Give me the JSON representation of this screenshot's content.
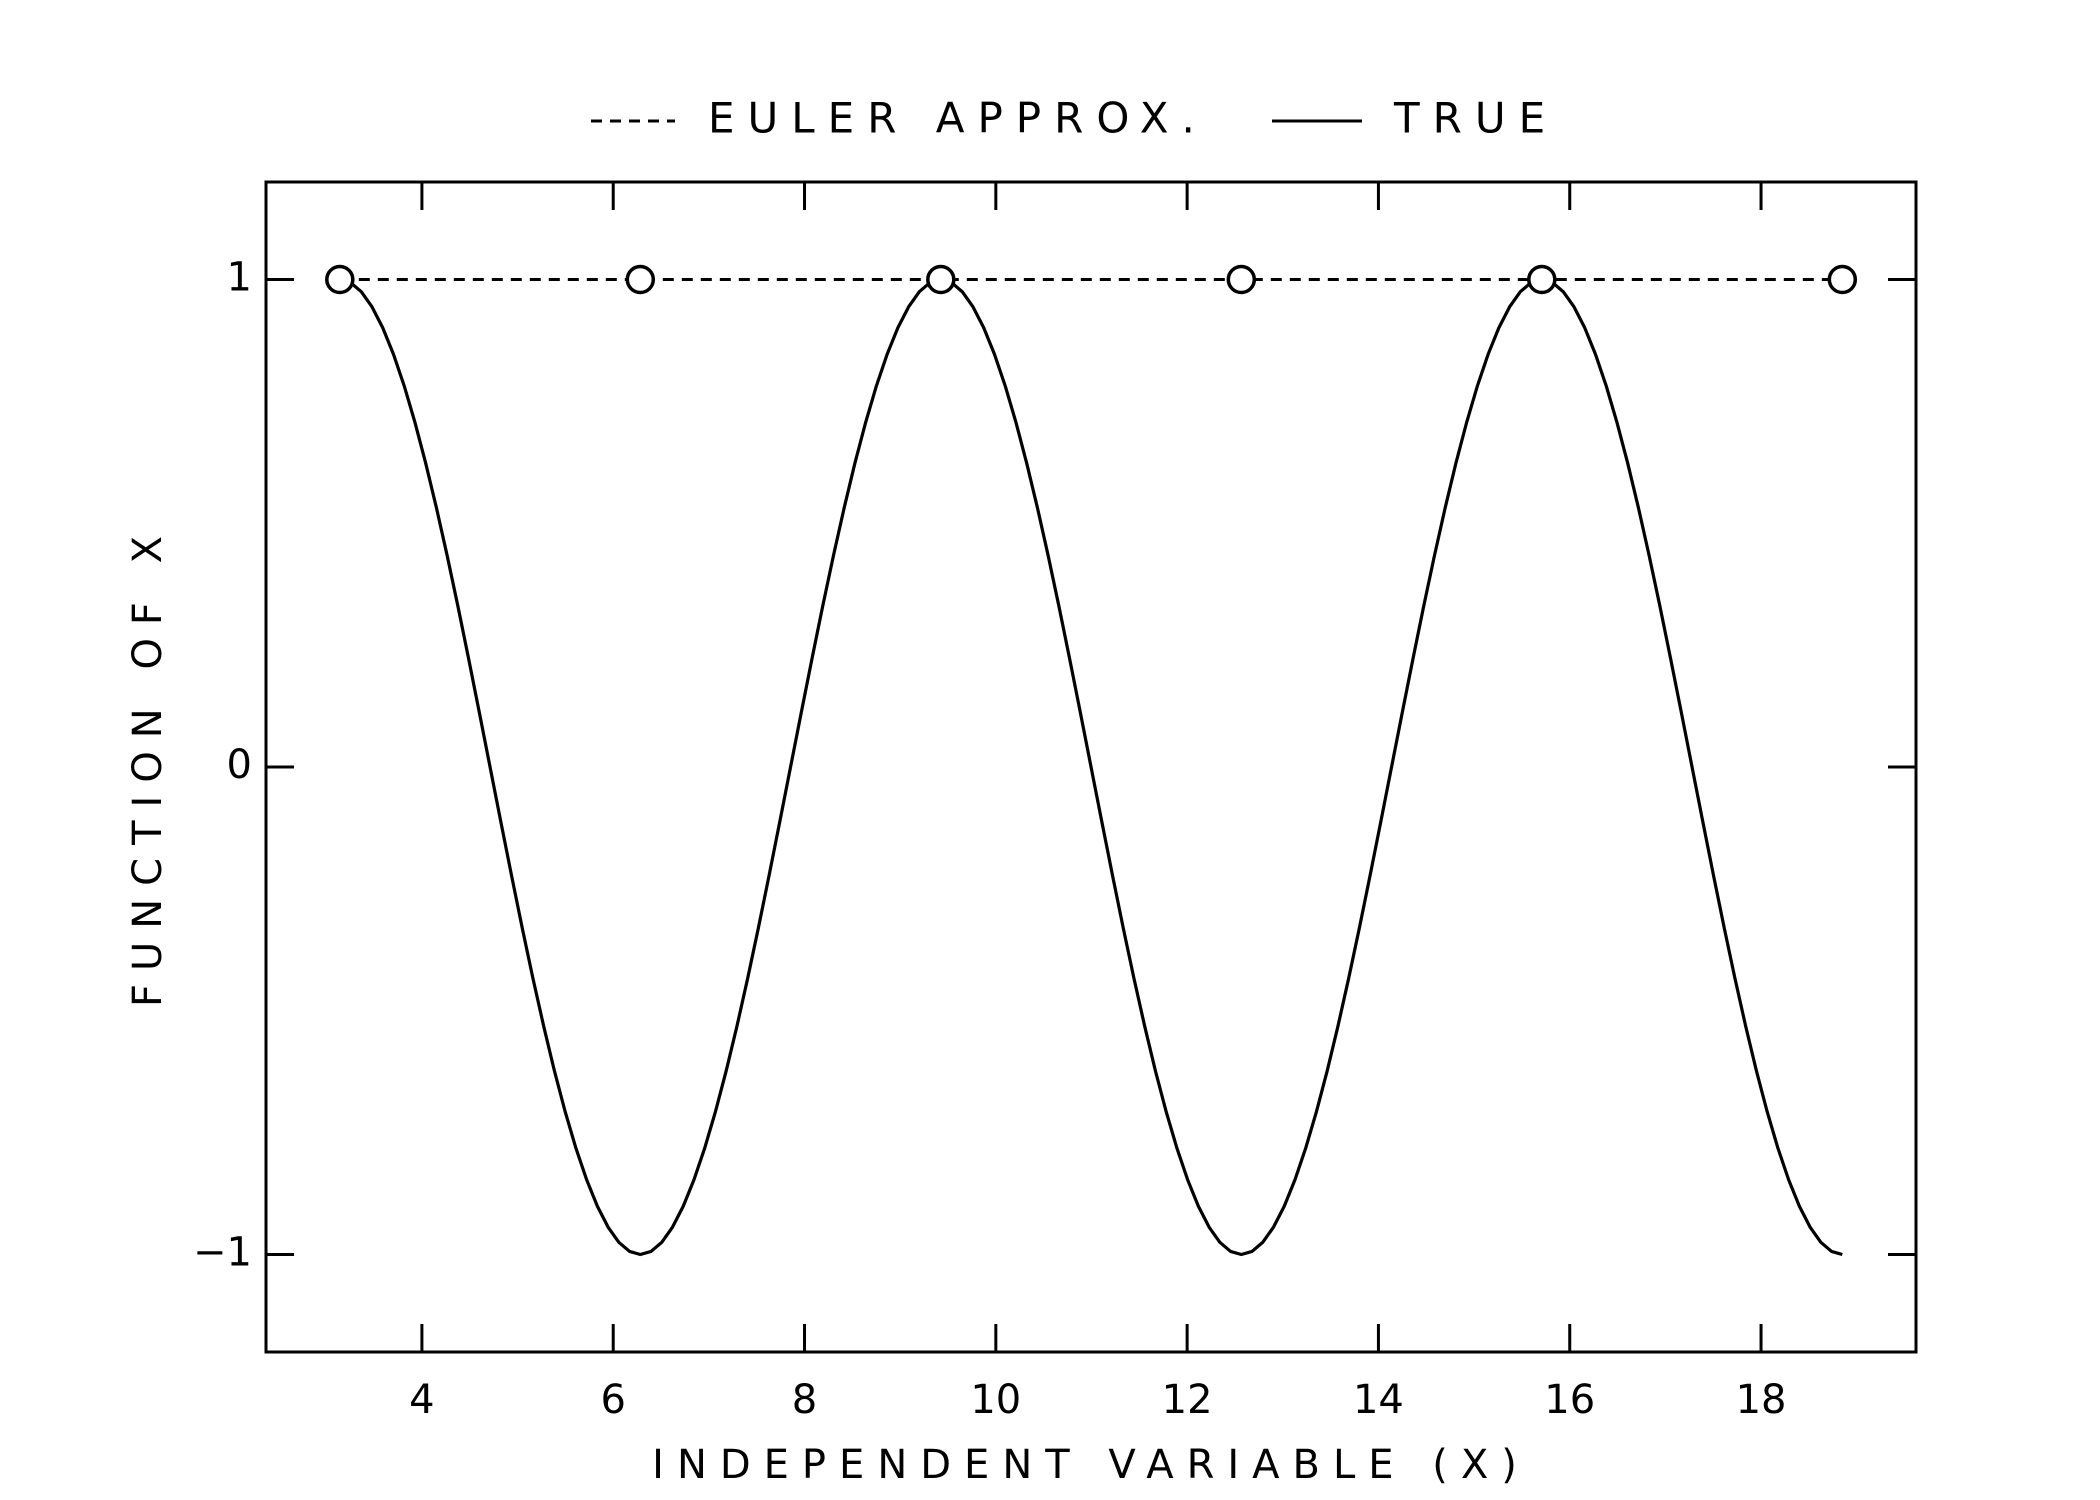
{
  "chart_data": {
    "type": "line",
    "xlabel": "INDEPENDENT VARIABLE (X)",
    "ylabel": "FUNCTION OF X",
    "xlim": [
      2.37,
      19.62
    ],
    "ylim": [
      -1.2,
      1.2
    ],
    "x_ticks": [
      4,
      6,
      8,
      10,
      12,
      14,
      16,
      18
    ],
    "x_tick_labels": [
      "4",
      "6",
      "8",
      "10",
      "12",
      "14",
      "16",
      "18"
    ],
    "y_ticks": [
      -1,
      0,
      1
    ],
    "y_tick_labels": [
      "−1",
      "0",
      "1"
    ],
    "grid": false,
    "legend_position": "top-center",
    "legend": [
      {
        "label": "EULER APPROX.",
        "style": "dashed"
      },
      {
        "label": "TRUE",
        "style": "solid"
      }
    ],
    "series": [
      {
        "name": "EULER APPROX.",
        "style": "dashed",
        "markers": "open-circle",
        "x": [
          3.1416,
          6.2832,
          9.4248,
          12.5664,
          15.708,
          18.8496
        ],
        "y": [
          1,
          1,
          1,
          1,
          1,
          1
        ]
      },
      {
        "name": "TRUE",
        "style": "solid",
        "function": "-cos(x)",
        "x_range": [
          3.1416,
          18.8496
        ]
      }
    ],
    "colors": {
      "line": "#000000",
      "marker_fill": "#ffffff",
      "background": "#ffffff"
    }
  }
}
